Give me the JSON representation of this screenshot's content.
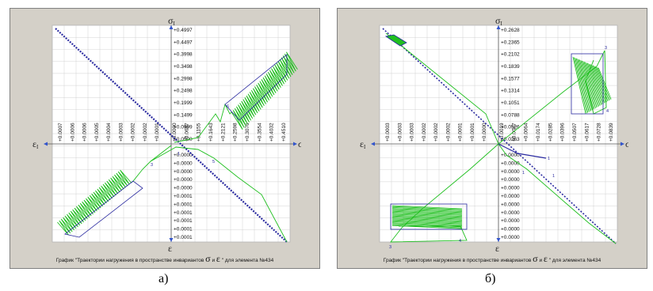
{
  "caption": {
    "prefix": "График \"Траектории нагружения в пространстве инвариантов",
    "sigma": "σ",
    "and": "и",
    "eps": "ε",
    "suffix": "\" для элемента №434"
  },
  "panel_labels": [
    "а)",
    "б)"
  ],
  "colors": {
    "grid": "#c8c8c8",
    "axis": "#555555",
    "trajectory": "#1fbf1f",
    "points": "#2a2aa0",
    "background": "#ffffff",
    "frame": "#d4d0c8"
  },
  "chart_data": [
    {
      "type": "line",
      "panel": "а)",
      "axis_labels": {
        "top": "σ",
        "top_sub": "I",
        "bottom": "ε",
        "left": "ε",
        "left_sub": "I",
        "right": "σ"
      },
      "y_ticks_top": [
        "+0.4997",
        "+0.4497",
        "+0.3998",
        "+0.3498",
        "+0.2998",
        "+0.2498",
        "+0.1999",
        "+0.1499",
        "+0.0999",
        "+0.0500"
      ],
      "y_ticks_bottom": [
        "+0.0000",
        "+0.0000",
        "+0.0000",
        "+0.0000",
        "+0.0000",
        "+0.0001",
        "+0.0001",
        "+0.0001",
        "+0.0001",
        "+0.0001",
        "+0.0001"
      ],
      "x_ticks_left": [
        "+0.0007",
        "+0.0006",
        "+0.0006",
        "+0.0005",
        "+0.0004",
        "+0.0003",
        "+0.0002",
        "+0.0002",
        "+0.0001"
      ],
      "x_ticks_right": [
        "+0.0000",
        "+0.0687",
        "+0.1155",
        "+0.1643",
        "+0.2121",
        "+0.2598",
        "+0.3076",
        "+0.3554",
        "+0.4032",
        "+0.4510"
      ],
      "series": [
        {
          "name": "σ",
          "color": "#1fbf1f",
          "x": [
            0.0,
            0.02,
            0.08,
            0.12,
            0.15,
            0.45
          ],
          "y": [
            0.0,
            0.02,
            0.06,
            0.1,
            0.12,
            0.47
          ]
        },
        {
          "name": "ε",
          "color": "#1fbf1f",
          "x": [
            0.0,
            -6e-05,
            -0.00025,
            -0.0007
          ],
          "y": [
            0.0,
            -1e-05,
            -3e-05,
            -0.0001
          ]
        }
      ]
    },
    {
      "type": "line",
      "panel": "б)",
      "axis_labels": {
        "top": "σ",
        "top_sub": "I",
        "bottom": "ε",
        "left": "ε",
        "left_sub": "I",
        "right": "σ"
      },
      "y_ticks_top": [
        "+0.2628",
        "+0.2365",
        "+0.2102",
        "+0.1839",
        "+0.1577",
        "+0.1314",
        "+0.1051",
        "+0.0788",
        "+0.0526",
        "+0.0263"
      ],
      "y_ticks_bottom": [
        "+0.0000",
        "+0.0000",
        "+0.0000",
        "+0.0000",
        "+0.0000",
        "+0.0000",
        "+0.0000",
        "+0.0000",
        "+0.0000",
        "+0.0000",
        "+0.0000"
      ],
      "x_ticks_left": [
        "+0.0003",
        "+0.0003",
        "+0.0003",
        "+0.0002",
        "+0.0002",
        "+0.0002",
        "+0.0001",
        "+0.0001",
        "+0.0000"
      ],
      "x_ticks_right": [
        "+0.0019",
        "+0.0047",
        "+0.0064",
        "+0.0174",
        "+0.0285",
        "+0.0396",
        "+0.0507",
        "+0.0617",
        "+0.0728",
        "+0.0839"
      ],
      "series": [
        {
          "name": "σ",
          "color": "#1fbf1f",
          "x": [
            0.0,
            0.06,
            0.07,
            0.084
          ],
          "y": [
            0.0,
            0.24,
            0.25,
            0.2
          ]
        },
        {
          "name": "ε",
          "color": "#1fbf1f",
          "x": [
            0.0,
            -0.00012,
            -0.0003,
            -0.0003
          ],
          "y": [
            0.0,
            -2e-05,
            -3e-05,
            -0.0001
          ]
        }
      ]
    }
  ]
}
